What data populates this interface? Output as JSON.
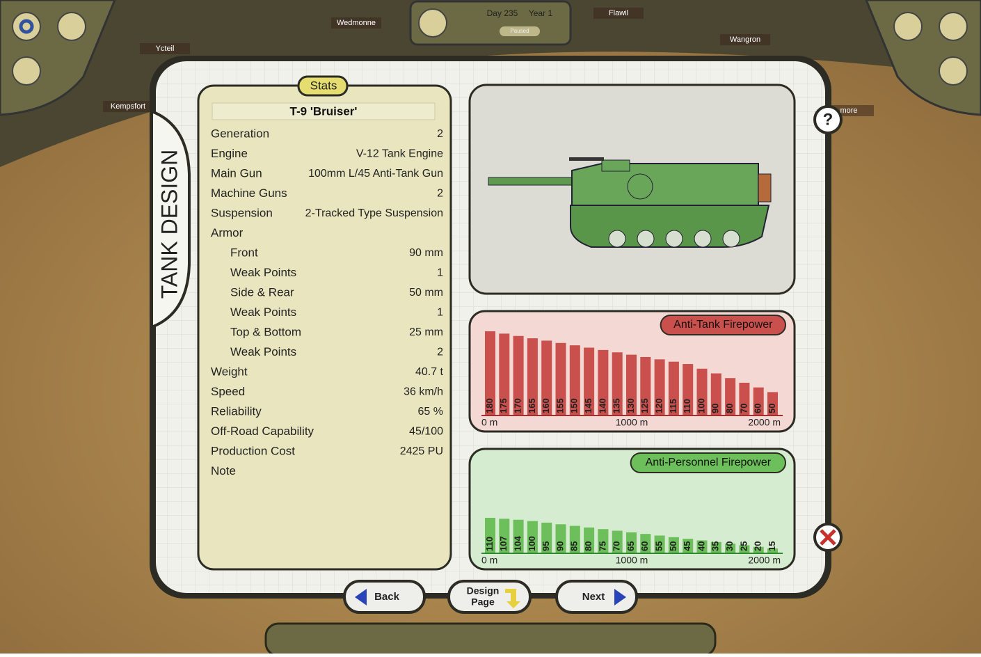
{
  "hud": {
    "day": "Day 235",
    "year": "Year 1",
    "status": "Paused",
    "help": "?"
  },
  "map_labels": [
    "Wedmonne",
    "Ycteil",
    "Kempsfort",
    "Flawil",
    "Wangron",
    "more"
  ],
  "side_tab": "TANK DESIGN",
  "stats": {
    "header": "Stats",
    "name": "T-9 'Bruiser'",
    "rows": [
      {
        "label": "Generation",
        "value": "2"
      },
      {
        "label": "Engine",
        "value": "V-12 Tank Engine"
      },
      {
        "label": "Main Gun",
        "value": "100mm L/45 Anti-Tank Gun"
      },
      {
        "label": "Machine Guns",
        "value": "2"
      },
      {
        "label": "Suspension",
        "value": "2-Tracked Type Suspension"
      }
    ],
    "armor": {
      "label": "Armor",
      "rows": [
        {
          "label": "Front",
          "value": "90 mm"
        },
        {
          "label": "Weak Points",
          "value": "1"
        },
        {
          "label": "Side & Rear",
          "value": "50 mm"
        },
        {
          "label": "Weak Points",
          "value": "1"
        },
        {
          "label": "Top & Bottom",
          "value": "25 mm"
        },
        {
          "label": "Weak Points",
          "value": "2"
        }
      ]
    },
    "rows_after": [
      {
        "label": "Weight",
        "value": "40.7 t"
      },
      {
        "label": "Speed",
        "value": "36 km/h"
      },
      {
        "label": "Reliability",
        "value": "65 %"
      },
      {
        "label": "Off-Road Capability",
        "value": "45/100"
      },
      {
        "label": "Production Cost",
        "value": "2425 PU"
      },
      {
        "label": "Note"
      }
    ]
  },
  "anti_tank": {
    "title": "Anti-Tank Firepower",
    "color": "#c9504c",
    "values": [
      180,
      175,
      170,
      165,
      160,
      155,
      150,
      145,
      140,
      135,
      130,
      125,
      120,
      115,
      110,
      100,
      90,
      80,
      70,
      60,
      50
    ],
    "axis_labels": [
      "0 m",
      "1000 m",
      "2000 m"
    ]
  },
  "anti_personnel": {
    "title": "Anti-Personnel Firepower",
    "color": "#6cbf5a",
    "values": [
      110,
      107,
      104,
      100,
      95,
      90,
      85,
      80,
      75,
      70,
      65,
      60,
      55,
      50,
      45,
      40,
      35,
      30,
      25,
      20,
      15
    ],
    "axis_labels": [
      "0 m",
      "1000 m",
      "2000 m"
    ]
  },
  "buttons": {
    "back": "Back",
    "design": [
      "Design",
      "Page"
    ],
    "next": "Next"
  }
}
